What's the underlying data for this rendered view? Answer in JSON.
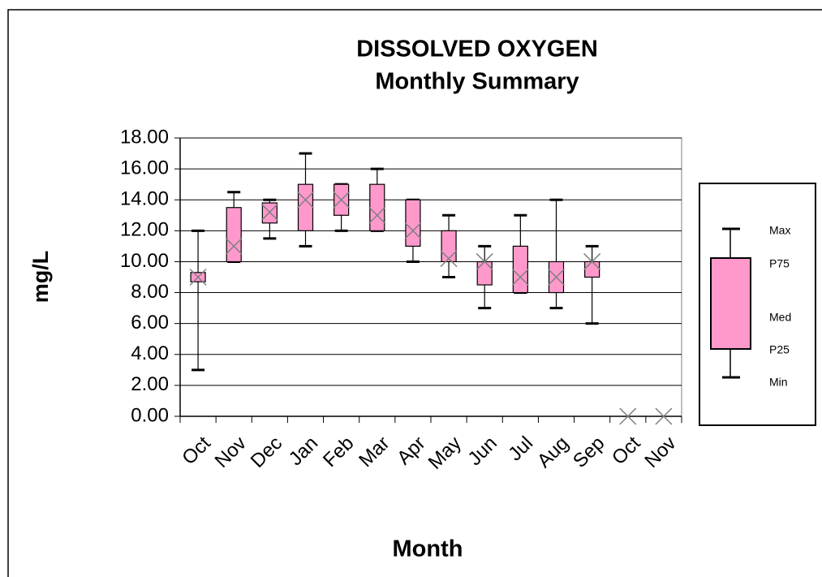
{
  "chart_data": {
    "type": "box",
    "title": "DISSOLVED OXYGEN",
    "subtitle": "Monthly Summary",
    "x_label": "Month",
    "y_label": "mg/L",
    "categories": [
      "Oct",
      "Nov",
      "Dec",
      "Jan",
      "Feb",
      "Mar",
      "Apr",
      "May",
      "Jun",
      "Jul",
      "Aug",
      "Sep",
      "Oct",
      "Nov"
    ],
    "series": {
      "min": [
        3,
        10,
        11.5,
        11,
        12,
        12,
        10,
        9,
        7,
        8,
        7,
        6,
        null,
        null
      ],
      "p25": [
        8.7,
        10,
        12.5,
        12,
        13,
        12,
        11,
        10,
        8.5,
        8,
        8,
        9,
        null,
        null
      ],
      "median": [
        9,
        11,
        13.2,
        14,
        14,
        13,
        12,
        10.2,
        10,
        9,
        9,
        10,
        0,
        0
      ],
      "p75": [
        9.3,
        13.5,
        13.8,
        15,
        15,
        15,
        14,
        12,
        10,
        11,
        10,
        10,
        null,
        null
      ],
      "max": [
        12,
        14.5,
        14,
        17,
        15,
        16,
        14,
        13,
        11,
        13,
        14,
        11,
        null,
        null
      ]
    },
    "color": "#ff99cc",
    "ylim": [
      0,
      18
    ],
    "yticks": [
      {
        "value": 0,
        "label": "0.00"
      },
      {
        "value": 2,
        "label": "2.00"
      },
      {
        "value": 4,
        "label": "4.00"
      },
      {
        "value": 6,
        "label": "6.00"
      },
      {
        "value": 8,
        "label": "8.00"
      },
      {
        "value": 10,
        "label": "10.00"
      },
      {
        "value": 12,
        "label": "12.00"
      },
      {
        "value": 14,
        "label": "14.00"
      },
      {
        "value": 16,
        "label": "16.00"
      },
      {
        "value": 18,
        "label": "18.00"
      }
    ],
    "grid": true,
    "legend": [
      "Max",
      "P75",
      "Med",
      "P25",
      "Min"
    ]
  }
}
